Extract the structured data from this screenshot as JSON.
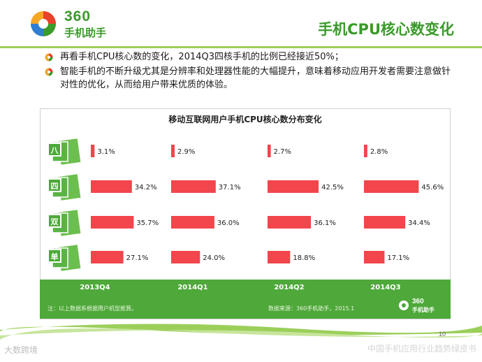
{
  "brand": {
    "logo_num": "360",
    "logo_cn": "手机助手",
    "green": "#3a9a2a"
  },
  "page_title": "手机CPU核心数变化",
  "bullets": [
    "再看手机CPU核心数的变化，2014Q3四核手机的比例已经接近50%；",
    "智能手机的不断升级尤其是分辨率和处理器性能的大幅提升，意味着移动应用开发者需要注意做针对性的优化，从而给用户带来优质的体验。"
  ],
  "chart_data": {
    "type": "bar",
    "title": "移动互联网用户手机CPU核心数分布变化",
    "rows": [
      "八",
      "四",
      "双",
      "单"
    ],
    "series": [
      {
        "name": "2013Q4",
        "values": [
          3.1,
          34.2,
          35.7,
          27.1
        ]
      },
      {
        "name": "2014Q1",
        "values": [
          2.9,
          37.1,
          36.0,
          24.0
        ]
      },
      {
        "name": "2014Q2",
        "values": [
          2.7,
          42.5,
          36.1,
          18.8
        ]
      },
      {
        "name": "2014Q3",
        "values": [
          2.8,
          45.6,
          34.4,
          17.1
        ]
      }
    ],
    "unit": "%",
    "bar_color": "#f2454c",
    "badge_color": "#4ea83a"
  },
  "chart_note": "注：以上数据系根据用户机型推算。",
  "chart_source": "数据来源：360手机助手，2015.1",
  "chart_logo": {
    "num": "360",
    "cn": "手机助手"
  },
  "page_number": "10",
  "footer_brand": "中国手机应用行业趋势绿皮书",
  "watermark": "大数跨境"
}
